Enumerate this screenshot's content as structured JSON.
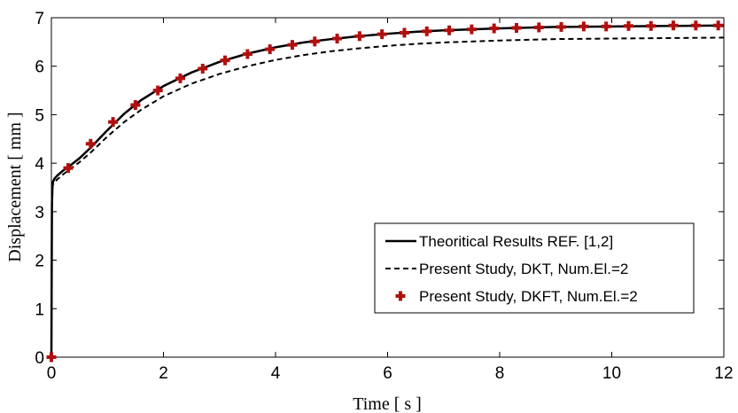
{
  "chart_data": {
    "type": "line",
    "xlabel": "Time [ s ]",
    "ylabel": "Displacement [ mm ]",
    "xlim": [
      0,
      12
    ],
    "ylim": [
      0,
      7
    ],
    "xticks": [
      0,
      2,
      4,
      6,
      8,
      10,
      12
    ],
    "yticks": [
      0,
      1,
      2,
      3,
      4,
      5,
      6,
      7
    ],
    "xtick_labels": [
      "0",
      "2",
      "4",
      "6",
      "8",
      "10",
      "12"
    ],
    "ytick_labels": [
      "0",
      "1",
      "2",
      "3",
      "4",
      "5",
      "6",
      "7"
    ],
    "grid": false,
    "legend_position": "bottom-right",
    "series": [
      {
        "name": "Theoritical Results REF. [1,2]",
        "style": "solid",
        "color": "#000000",
        "x": [
          0,
          0.01,
          0.02,
          0.03,
          0.05,
          0.1,
          0.2,
          0.3,
          0.5,
          0.7,
          1.0,
          1.3,
          1.6,
          2.0,
          2.5,
          3.0,
          3.5,
          4.0,
          4.5,
          5.0,
          5.5,
          6.0,
          6.5,
          7.0,
          8.0,
          9.0,
          10.0,
          11.0,
          12.0
        ],
        "y": [
          0,
          3.15,
          3.55,
          3.62,
          3.67,
          3.74,
          3.84,
          3.92,
          4.1,
          4.32,
          4.68,
          5.02,
          5.3,
          5.59,
          5.87,
          6.09,
          6.26,
          6.39,
          6.49,
          6.56,
          6.62,
          6.67,
          6.71,
          6.74,
          6.78,
          6.81,
          6.82,
          6.83,
          6.84
        ]
      },
      {
        "name": "Present Study, DKT,  Num.El.=2",
        "style": "dashed",
        "color": "#000000",
        "x": [
          0,
          0.01,
          0.02,
          0.03,
          0.05,
          0.1,
          0.2,
          0.3,
          0.5,
          0.7,
          1.0,
          1.3,
          1.6,
          2.0,
          2.5,
          3.0,
          3.5,
          4.0,
          4.5,
          5.0,
          5.5,
          6.0,
          6.5,
          7.0,
          8.0,
          9.0,
          10.0,
          11.0,
          12.0
        ],
        "y": [
          0,
          3.1,
          3.5,
          3.56,
          3.6,
          3.66,
          3.76,
          3.85,
          4.02,
          4.22,
          4.55,
          4.85,
          5.1,
          5.38,
          5.64,
          5.84,
          6.0,
          6.13,
          6.23,
          6.31,
          6.37,
          6.42,
          6.46,
          6.49,
          6.53,
          6.56,
          6.57,
          6.58,
          6.59
        ]
      },
      {
        "name": "Present Study, DKFT, Num.El.=2",
        "style": "markers",
        "marker": "plus",
        "color": "#b01010",
        "x": [
          0,
          0.3,
          0.7,
          1.1,
          1.5,
          1.9,
          2.3,
          2.7,
          3.1,
          3.5,
          3.9,
          4.3,
          4.7,
          5.1,
          5.5,
          5.9,
          6.3,
          6.7,
          7.1,
          7.5,
          7.9,
          8.3,
          8.7,
          9.1,
          9.5,
          9.9,
          10.3,
          10.7,
          11.1,
          11.5,
          11.9
        ],
        "y": [
          0,
          3.9,
          4.4,
          4.85,
          5.2,
          5.5,
          5.75,
          5.95,
          6.12,
          6.25,
          6.35,
          6.44,
          6.51,
          6.57,
          6.62,
          6.66,
          6.69,
          6.72,
          6.74,
          6.76,
          6.78,
          6.79,
          6.8,
          6.81,
          6.82,
          6.82,
          6.83,
          6.83,
          6.84,
          6.84,
          6.84
        ]
      }
    ]
  }
}
